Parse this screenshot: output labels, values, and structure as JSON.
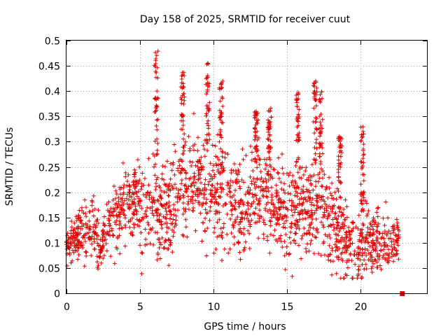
{
  "chart_data": {
    "type": "scatter",
    "title": "Day 158 of 2025, SRMTID for receiver cuut",
    "xlabel": "GPS time / hours",
    "ylabel": "SRMTID / TECUs",
    "xlim": [
      0,
      24.5
    ],
    "ylim": [
      0,
      0.5
    ],
    "x_ticks": [
      0,
      5,
      10,
      15,
      20
    ],
    "x_tick_labels": [
      "0",
      "5",
      "10",
      "15",
      "20"
    ],
    "y_ticks": [
      0,
      0.05,
      0.1,
      0.15,
      0.2,
      0.25,
      0.3,
      0.35,
      0.4,
      0.45,
      0.5
    ],
    "y_tick_labels": [
      "0",
      "0.05",
      "0.1",
      "0.15",
      "0.2",
      "0.25",
      "0.3",
      "0.35",
      "0.4",
      "0.45",
      "0.5"
    ],
    "grid": true,
    "marker": "plus",
    "color": "#e00000",
    "envelope": {
      "x": [
        0,
        1,
        2,
        2.3,
        3,
        4,
        5,
        6,
        7,
        8,
        9,
        10,
        11,
        12,
        13,
        14,
        15,
        16,
        17,
        18,
        19,
        20,
        21,
        22,
        22.6
      ],
      "center": [
        0.09,
        0.13,
        0.12,
        0.08,
        0.14,
        0.18,
        0.17,
        0.16,
        0.16,
        0.22,
        0.22,
        0.2,
        0.19,
        0.17,
        0.2,
        0.19,
        0.16,
        0.17,
        0.16,
        0.14,
        0.1,
        0.1,
        0.1,
        0.1,
        0.11
      ],
      "spread": [
        0.02,
        0.04,
        0.04,
        0.03,
        0.05,
        0.05,
        0.06,
        0.07,
        0.06,
        0.07,
        0.07,
        0.07,
        0.07,
        0.06,
        0.06,
        0.06,
        0.06,
        0.06,
        0.06,
        0.06,
        0.05,
        0.05,
        0.04,
        0.04,
        0.03
      ]
    },
    "sample_count": 1800,
    "peaks": [
      {
        "x": 6.1,
        "y": 0.48
      },
      {
        "x": 7.9,
        "y": 0.44
      },
      {
        "x": 9.6,
        "y": 0.46
      },
      {
        "x": 10.5,
        "y": 0.42
      },
      {
        "x": 15.7,
        "y": 0.4
      },
      {
        "x": 16.9,
        "y": 0.42
      },
      {
        "x": 17.3,
        "y": 0.4
      },
      {
        "x": 12.9,
        "y": 0.36
      },
      {
        "x": 13.8,
        "y": 0.37
      },
      {
        "x": 20.1,
        "y": 0.33
      },
      {
        "x": 18.6,
        "y": 0.31
      }
    ],
    "terminal_marker": {
      "x": 22.8,
      "y": 0.0
    }
  }
}
